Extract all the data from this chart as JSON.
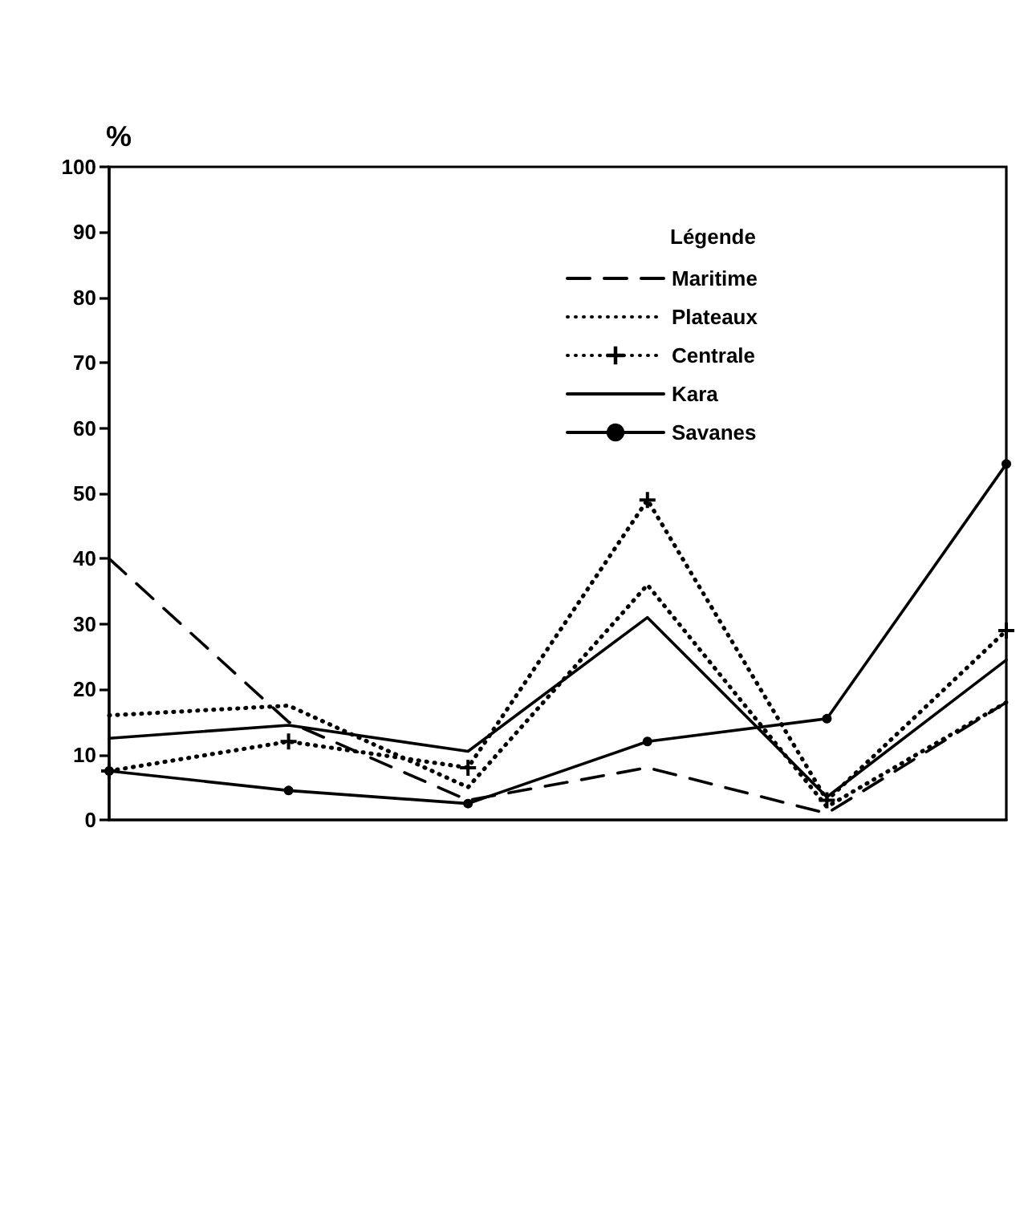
{
  "chart_data": {
    "type": "line",
    "ylabel": "%",
    "legend_title": "Légende",
    "legend": "top right",
    "grid": false,
    "categories": [
      null,
      null,
      null,
      null,
      null,
      null
    ],
    "ylim": [
      0,
      100
    ],
    "yticks": [
      0,
      10,
      20,
      30,
      40,
      50,
      60,
      70,
      80,
      90,
      100
    ],
    "series": [
      {
        "name": "Maritime",
        "color": "#000000",
        "line_style": "dashed",
        "marker": "none",
        "values": [
          40,
          15,
          3,
          8,
          1,
          18
        ]
      },
      {
        "name": "Plateaux",
        "color": "#000000",
        "line_style": "dotted",
        "marker": "none",
        "values": [
          16,
          17.5,
          5,
          36,
          2,
          18
        ]
      },
      {
        "name": "Centrale",
        "color": "#000000",
        "line_style": "dotted",
        "marker": "cross",
        "values": [
          7.5,
          12,
          8,
          49,
          3,
          29
        ]
      },
      {
        "name": "Kara",
        "color": "#000000",
        "line_style": "solid",
        "marker": "none",
        "values": [
          12.5,
          14.5,
          10.5,
          31,
          3.5,
          24.5
        ]
      },
      {
        "name": "Savanes",
        "color": "#000000",
        "line_style": "solid",
        "marker": "circle",
        "values": [
          7.5,
          4.5,
          2.5,
          12,
          15.5,
          54.5
        ]
      }
    ]
  }
}
